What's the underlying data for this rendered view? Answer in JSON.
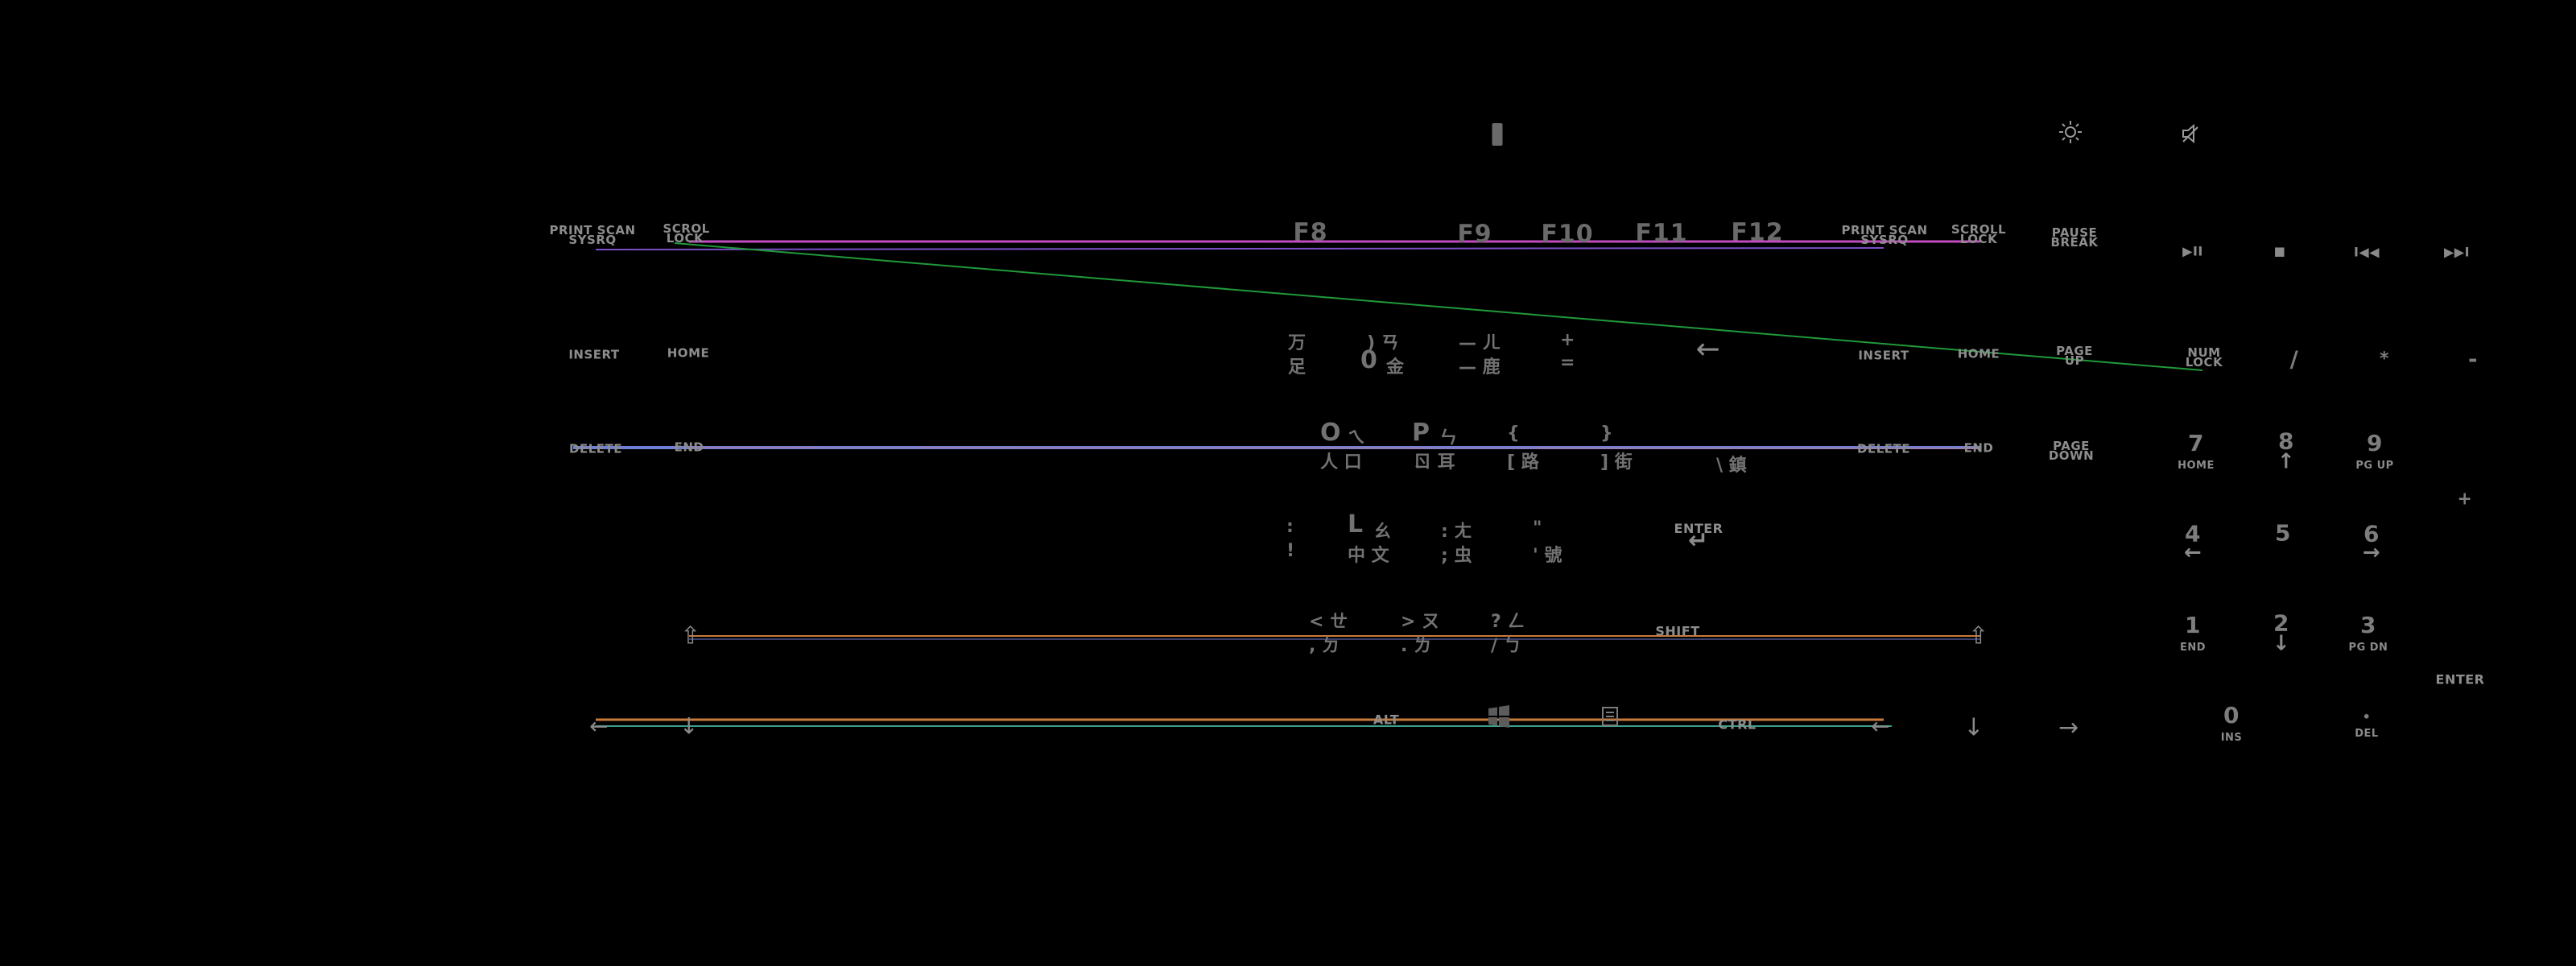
{
  "indicators": {
    "brightness_icon": "sun-icon",
    "mute_icon": "speaker-mute-icon"
  },
  "keys": {
    "print_scan": "PRINT SCAN",
    "sysrq": "SYSRQ",
    "scroll_lock": "SCROLL LOCK",
    "scrol_lock": "SCROL LOCK",
    "pause_break": "PAUSE BREAK",
    "f8": "F8",
    "f9": "F9",
    "f10": "F10",
    "f11": "F11",
    "f12": "F12",
    "insert": "INSERT",
    "home": "HOME",
    "page_up": "PAGE UP",
    "delete": "DELETE",
    "end": "END",
    "page_down": "PAGE DOWN",
    "enter": "ENTER",
    "shift": "SHIFT",
    "alt": "ALT",
    "ctrl": "CTRL",
    "backspace_arrow": "←",
    "return_arrow": "↵",
    "shift_arrow": "⇧",
    "left_arrow": "←",
    "down_arrow": "↓",
    "right_arrow": "→"
  },
  "media": {
    "play_pause": "▶II",
    "stop": "■",
    "prev": "I◀◀",
    "next": "▶▶I"
  },
  "numpad": {
    "num_lock": "NUM LOCK",
    "slash": "/",
    "star": "*",
    "minus": "-",
    "plus": "+",
    "n7": "7",
    "n7_sub": "HOME",
    "n8": "8",
    "n8_sub": "↑",
    "n9": "9",
    "n9_sub": "PG UP",
    "n4": "4",
    "n4_sub": "←",
    "n5": "5",
    "n6": "6",
    "n6_sub": "→",
    "n1": "1",
    "n1_sub": "END",
    "n2": "2",
    "n2_sub": "↓",
    "n3": "3",
    "n3_sub": "PG DN",
    "n0": "0",
    "n0_sub": "INS",
    "dot": "•",
    "dot_sub": "DEL",
    "enter": "ENTER"
  },
  "zhuyin": {
    "k9_top": "万",
    "k9_bot": "足",
    "k0_top": ") ㄢ",
    "k0_main": "0",
    "k0_bot": "金",
    "minus_top": "— ㄦ",
    "minus_bot": "— 鹿",
    "equal_top": "+",
    "equal_bot": "=",
    "o_main": "O",
    "o_top": "ㄟ",
    "o_bot": "人 口",
    "p_main": "P",
    "p_top": "ㄣ",
    "p_bot": "ㄖ 耳",
    "lbr_top": "{",
    "lbr_bot": "[ 路",
    "rbr_top": "}",
    "rbr_bot": "] 街",
    "bsl_bot": "\\ 鎮",
    "col_top": ":",
    "col_bot": "!",
    "l_main": "L",
    "l_top": "ㄠ",
    "l_bot": "中 文",
    "semi_top": ": ㄤ",
    "semi_bot": "; 虫",
    "quote_top": "\"",
    "quote_bot": "' 號",
    "lt_top": "< ㄝ",
    "lt_bot": ", ㄉ",
    "gt_top": "> ㄡ",
    "gt_bot": ". ㄌ",
    "q_top": "? ㄥ",
    "q_bot": "/ ㄅ"
  },
  "overlay_colors": {
    "magenta": "#c04cc0",
    "green": "#1f9a3a",
    "blue": "#6f7fd6",
    "orange": "#c87a3a",
    "pink": "#d07070",
    "teal": "#3aa08a",
    "purple": "#7a4ec6"
  }
}
